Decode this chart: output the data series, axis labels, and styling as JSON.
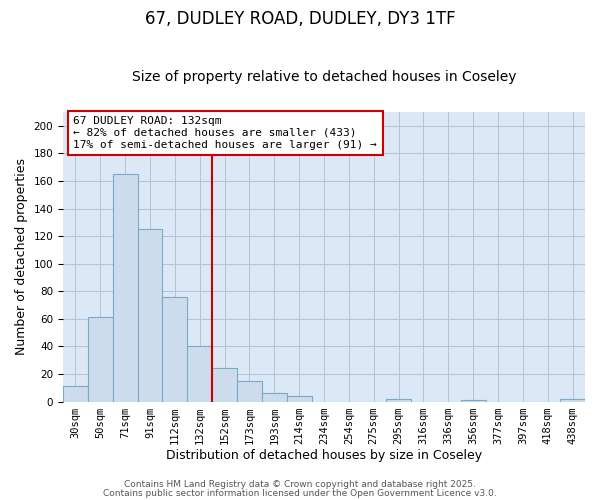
{
  "title": "67, DUDLEY ROAD, DUDLEY, DY3 1TF",
  "subtitle": "Size of property relative to detached houses in Coseley",
  "xlabel": "Distribution of detached houses by size in Coseley",
  "ylabel": "Number of detached properties",
  "bar_labels": [
    "30sqm",
    "50sqm",
    "71sqm",
    "91sqm",
    "112sqm",
    "132sqm",
    "152sqm",
    "173sqm",
    "193sqm",
    "214sqm",
    "234sqm",
    "254sqm",
    "275sqm",
    "295sqm",
    "316sqm",
    "336sqm",
    "356sqm",
    "377sqm",
    "397sqm",
    "418sqm",
    "438sqm"
  ],
  "bar_values": [
    11,
    61,
    165,
    125,
    76,
    40,
    24,
    15,
    6,
    4,
    0,
    0,
    0,
    2,
    0,
    0,
    1,
    0,
    0,
    0,
    2
  ],
  "bar_color": "#ccdcec",
  "bar_edge_color": "#7aaac8",
  "vline_color": "#cc0000",
  "ylim": [
    0,
    210
  ],
  "yticks": [
    0,
    20,
    40,
    60,
    80,
    100,
    120,
    140,
    160,
    180,
    200
  ],
  "annotation_box_title": "67 DUDLEY ROAD: 132sqm",
  "annotation_line1": "← 82% of detached houses are smaller (433)",
  "annotation_line2": "17% of semi-detached houses are larger (91) →",
  "annotation_box_color": "#ffffff",
  "annotation_box_edge": "#cc0000",
  "bg_color": "#ffffff",
  "plot_bg_color": "#dce8f5",
  "grid_color": "#aec4d8",
  "footer1": "Contains HM Land Registry data © Crown copyright and database right 2025.",
  "footer2": "Contains public sector information licensed under the Open Government Licence v3.0.",
  "title_fontsize": 12,
  "subtitle_fontsize": 10,
  "xlabel_fontsize": 9,
  "ylabel_fontsize": 9,
  "tick_fontsize": 7.5,
  "footer_fontsize": 6.5,
  "ann_fontsize": 8
}
